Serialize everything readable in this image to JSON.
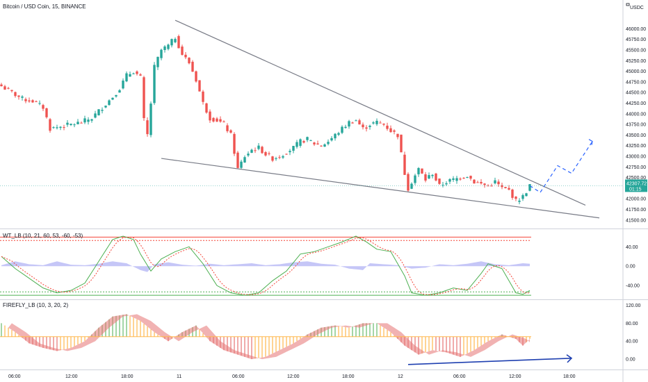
{
  "header": {
    "title": "Bitcoin / USD Coin, 15, BINANCE",
    "currency": "USDC",
    "lock_icon": "lock-icon"
  },
  "price_badge": {
    "value": "42307.72",
    "countdown": "01:15",
    "color": "#26a69a"
  },
  "colors": {
    "up": "#26a69a",
    "down": "#ef5350",
    "trendline": "#787b86",
    "projection": "#2962ff",
    "wt_wave": "#4caf50",
    "wt_signal": "#f44336",
    "wt_hist": "#9598f0",
    "ob_line": "#f44336",
    "os_line": "#4caf50",
    "ff_green": "#66bb6a",
    "ff_red": "#e57373",
    "ff_orange": "#ffb74d",
    "divergence": "#1e3fb0"
  },
  "chart_data": [
    {
      "type": "candlestick",
      "name": "price",
      "title": "Bitcoin / USD Coin, 15, BINANCE",
      "ylim": [
        41350,
        46350
      ],
      "y_ticks": [
        "46000.00",
        "45750.00",
        "45500.00",
        "45250.00",
        "45000.00",
        "44750.00",
        "44500.00",
        "44250.00",
        "44000.00",
        "43750.00",
        "43500.00",
        "43250.00",
        "43000.00",
        "42750.00",
        "42500.00",
        "42000.00",
        "41750.00",
        "41500.00"
      ],
      "x_ticks": [
        "06:00",
        "12:00",
        "18:00",
        "11",
        "06:00",
        "12:00",
        "18:00",
        "12",
        "06:00",
        "12:00",
        "18:00"
      ],
      "anchors": [
        [
          0,
          44650
        ],
        [
          3,
          44500
        ],
        [
          6,
          44350
        ],
        [
          9,
          44300
        ],
        [
          12,
          44150
        ],
        [
          14,
          43650
        ],
        [
          17,
          43700
        ],
        [
          20,
          43750
        ],
        [
          23,
          43800
        ],
        [
          26,
          43900
        ],
        [
          29,
          44150
        ],
        [
          32,
          44400
        ],
        [
          34,
          44600
        ],
        [
          36,
          44900
        ],
        [
          38,
          45000
        ],
        [
          40,
          44850
        ],
        [
          41,
          43850
        ],
        [
          42,
          43500
        ],
        [
          43,
          44250
        ],
        [
          44,
          45100
        ],
        [
          46,
          45500
        ],
        [
          48,
          45600
        ],
        [
          50,
          45800
        ],
        [
          52,
          45400
        ],
        [
          54,
          45200
        ],
        [
          56,
          44800
        ],
        [
          58,
          44250
        ],
        [
          60,
          43900
        ],
        [
          62,
          43850
        ],
        [
          64,
          43750
        ],
        [
          66,
          43500
        ],
        [
          68,
          42700
        ],
        [
          70,
          43000
        ],
        [
          72,
          43150
        ],
        [
          74,
          43200
        ],
        [
          76,
          43050
        ],
        [
          78,
          42950
        ],
        [
          80,
          43000
        ],
        [
          82,
          43100
        ],
        [
          84,
          43200
        ],
        [
          86,
          43350
        ],
        [
          88,
          43400
        ],
        [
          90,
          43300
        ],
        [
          92,
          43250
        ],
        [
          94,
          43350
        ],
        [
          96,
          43500
        ],
        [
          98,
          43650
        ],
        [
          100,
          43800
        ],
        [
          102,
          43850
        ],
        [
          104,
          43650
        ],
        [
          106,
          43750
        ],
        [
          108,
          43800
        ],
        [
          110,
          43750
        ],
        [
          112,
          43600
        ],
        [
          114,
          43500
        ],
        [
          116,
          42600
        ],
        [
          117,
          42250
        ],
        [
          118,
          42400
        ],
        [
          120,
          42700
        ],
        [
          122,
          42450
        ],
        [
          124,
          42600
        ],
        [
          126,
          42300
        ],
        [
          128,
          42400
        ],
        [
          130,
          42450
        ],
        [
          132,
          42500
        ],
        [
          134,
          42550
        ],
        [
          136,
          42400
        ],
        [
          138,
          42350
        ],
        [
          140,
          42300
        ],
        [
          142,
          42400
        ],
        [
          144,
          42250
        ],
        [
          146,
          42200
        ],
        [
          148,
          41950
        ],
        [
          150,
          42050
        ],
        [
          152,
          42307
        ]
      ],
      "upper_trendline": [
        [
          50,
          46200
        ],
        [
          168,
          41850
        ]
      ],
      "lower_trendline": [
        [
          46,
          42950
        ],
        [
          172,
          41550
        ]
      ],
      "projection": [
        [
          152,
          42307
        ],
        [
          155,
          42150
        ],
        [
          160,
          42780
        ],
        [
          164,
          42600
        ],
        [
          170,
          43350
        ]
      ],
      "last_price": 42307.72
    },
    {
      "type": "line",
      "name": "wavetrend",
      "title": "WT_LB (10, 21, 60, 53, -60, -53)",
      "ylim": [
        -67,
        72
      ],
      "y_ticks": [
        "40.00",
        "0.00",
        "-40.00"
      ],
      "levels": [
        60,
        53,
        -53,
        -60
      ],
      "wave_anchors": [
        [
          0,
          20
        ],
        [
          4,
          -5
        ],
        [
          8,
          -25
        ],
        [
          12,
          -45
        ],
        [
          16,
          -55
        ],
        [
          20,
          -50
        ],
        [
          24,
          -35
        ],
        [
          28,
          10
        ],
        [
          32,
          55
        ],
        [
          35,
          62
        ],
        [
          38,
          55
        ],
        [
          40,
          25
        ],
        [
          43,
          -10
        ],
        [
          46,
          15
        ],
        [
          50,
          30
        ],
        [
          54,
          40
        ],
        [
          58,
          5
        ],
        [
          62,
          -40
        ],
        [
          66,
          -55
        ],
        [
          70,
          -60
        ],
        [
          74,
          -55
        ],
        [
          78,
          -30
        ],
        [
          82,
          -10
        ],
        [
          86,
          25
        ],
        [
          90,
          30
        ],
        [
          94,
          40
        ],
        [
          98,
          50
        ],
        [
          102,
          62
        ],
        [
          105,
          50
        ],
        [
          108,
          35
        ],
        [
          112,
          30
        ],
        [
          116,
          -20
        ],
        [
          118,
          -55
        ],
        [
          122,
          -60
        ],
        [
          126,
          -55
        ],
        [
          130,
          -45
        ],
        [
          134,
          -50
        ],
        [
          138,
          -15
        ],
        [
          140,
          5
        ],
        [
          144,
          -5
        ],
        [
          148,
          -55
        ],
        [
          150,
          -58
        ],
        [
          152,
          -50
        ]
      ],
      "histogram_anchors": [
        [
          0,
          2
        ],
        [
          4,
          10
        ],
        [
          8,
          4
        ],
        [
          12,
          2
        ],
        [
          16,
          10
        ],
        [
          20,
          3
        ],
        [
          24,
          2
        ],
        [
          28,
          5
        ],
        [
          32,
          10
        ],
        [
          36,
          6
        ],
        [
          40,
          -8
        ],
        [
          42,
          -12
        ],
        [
          44,
          4
        ],
        [
          48,
          8
        ],
        [
          52,
          3
        ],
        [
          56,
          1
        ],
        [
          60,
          5
        ],
        [
          64,
          2
        ],
        [
          68,
          4
        ],
        [
          72,
          6
        ],
        [
          76,
          2
        ],
        [
          80,
          4
        ],
        [
          84,
          8
        ],
        [
          88,
          10
        ],
        [
          92,
          5
        ],
        [
          96,
          3
        ],
        [
          100,
          -5
        ],
        [
          104,
          -8
        ],
        [
          106,
          6
        ],
        [
          110,
          4
        ],
        [
          114,
          2
        ],
        [
          118,
          -5
        ],
        [
          122,
          -3
        ],
        [
          126,
          4
        ],
        [
          130,
          2
        ],
        [
          134,
          5
        ],
        [
          138,
          10
        ],
        [
          142,
          4
        ],
        [
          146,
          2
        ],
        [
          150,
          6
        ],
        [
          152,
          5
        ]
      ]
    },
    {
      "type": "bar",
      "name": "firefly",
      "title": "FIREFLY_LB (10, 3, 20, 2)",
      "ylim": [
        -20,
        130
      ],
      "y_ticks": [
        "120.00",
        "80.00",
        "40.00",
        "0.00"
      ],
      "baseline": 50,
      "anchors": [
        [
          0,
          80
        ],
        [
          4,
          60
        ],
        [
          8,
          35
        ],
        [
          12,
          25
        ],
        [
          16,
          18
        ],
        [
          20,
          25
        ],
        [
          24,
          40
        ],
        [
          28,
          70
        ],
        [
          32,
          95
        ],
        [
          36,
          100
        ],
        [
          40,
          85
        ],
        [
          44,
          60
        ],
        [
          48,
          40
        ],
        [
          52,
          60
        ],
        [
          56,
          75
        ],
        [
          60,
          40
        ],
        [
          64,
          20
        ],
        [
          68,
          10
        ],
        [
          72,
          0
        ],
        [
          76,
          5
        ],
        [
          80,
          20
        ],
        [
          84,
          35
        ],
        [
          88,
          55
        ],
        [
          92,
          70
        ],
        [
          96,
          75
        ],
        [
          100,
          70
        ],
        [
          104,
          80
        ],
        [
          108,
          80
        ],
        [
          112,
          60
        ],
        [
          116,
          30
        ],
        [
          120,
          10
        ],
        [
          124,
          20
        ],
        [
          128,
          15
        ],
        [
          132,
          5
        ],
        [
          136,
          20
        ],
        [
          140,
          40
        ],
        [
          144,
          55
        ],
        [
          148,
          45
        ],
        [
          150,
          30
        ],
        [
          152,
          45
        ]
      ],
      "divergence_line": [
        [
          117,
          -12
        ],
        [
          164,
          2
        ]
      ]
    }
  ]
}
